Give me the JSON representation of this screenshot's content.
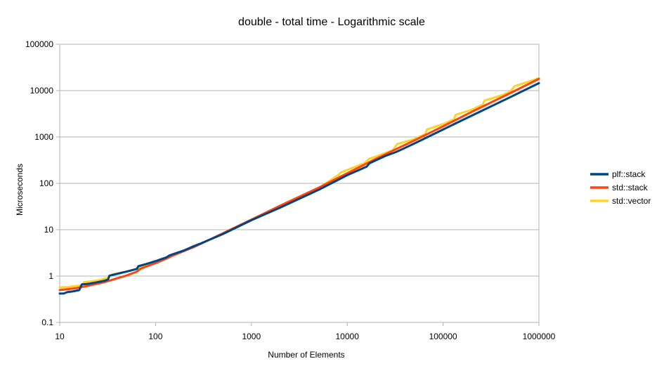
{
  "chart_data": {
    "type": "line",
    "title": "double - total time - Logarithmic scale",
    "xlabel": "Number of Elements",
    "ylabel": "Microseconds",
    "xscale": "log",
    "yscale": "log",
    "xlim": [
      10,
      1000000
    ],
    "ylim": [
      0.1,
      100000
    ],
    "x_ticks": [
      "10",
      "100",
      "1000",
      "10000",
      "100000",
      "1000000"
    ],
    "y_ticks": [
      "0.1",
      "1",
      "10",
      "100",
      "1000",
      "10000",
      "100000"
    ],
    "grid": "horizontal",
    "legend": "right",
    "series": [
      {
        "name": "plf::stack",
        "color": "#004586",
        "points": [
          [
            10,
            0.42
          ],
          [
            11,
            0.42
          ],
          [
            12,
            0.45
          ],
          [
            14,
            0.47
          ],
          [
            16,
            0.5
          ],
          [
            17,
            0.66
          ],
          [
            20,
            0.68
          ],
          [
            25,
            0.74
          ],
          [
            30,
            0.8
          ],
          [
            32,
            0.85
          ],
          [
            33,
            1.02
          ],
          [
            40,
            1.12
          ],
          [
            50,
            1.25
          ],
          [
            60,
            1.38
          ],
          [
            64,
            1.43
          ],
          [
            66,
            1.63
          ],
          [
            80,
            1.82
          ],
          [
            100,
            2.1
          ],
          [
            120,
            2.4
          ],
          [
            128,
            2.5
          ],
          [
            140,
            2.8
          ],
          [
            200,
            3.6
          ],
          [
            256,
            4.5
          ],
          [
            300,
            5.1
          ],
          [
            500,
            8
          ],
          [
            1000,
            16
          ],
          [
            2000,
            30
          ],
          [
            5000,
            72
          ],
          [
            10000,
            150
          ],
          [
            16000,
            230
          ],
          [
            17000,
            270
          ],
          [
            25000,
            390
          ],
          [
            32000,
            470
          ],
          [
            35000,
            510
          ],
          [
            50000,
            720
          ],
          [
            100000,
            1450
          ],
          [
            200000,
            2900
          ],
          [
            500000,
            7200
          ],
          [
            1000000,
            14500
          ]
        ]
      },
      {
        "name": "std::stack",
        "color": "#ff420e",
        "points": [
          [
            10,
            0.5
          ],
          [
            12,
            0.52
          ],
          [
            15,
            0.55
          ],
          [
            20,
            0.62
          ],
          [
            30,
            0.75
          ],
          [
            40,
            0.9
          ],
          [
            50,
            1.03
          ],
          [
            64,
            1.25
          ],
          [
            70,
            1.45
          ],
          [
            100,
            1.9
          ],
          [
            128,
            2.35
          ],
          [
            150,
            2.75
          ],
          [
            200,
            3.5
          ],
          [
            256,
            4.3
          ],
          [
            500,
            8.3
          ],
          [
            1000,
            16.5
          ],
          [
            2000,
            33
          ],
          [
            5000,
            80
          ],
          [
            10000,
            165
          ],
          [
            20000,
            340
          ],
          [
            50000,
            840
          ],
          [
            100000,
            1700
          ],
          [
            200000,
            3500
          ],
          [
            500000,
            8800
          ],
          [
            1000000,
            18000
          ]
        ]
      },
      {
        "name": "std::vector",
        "color": "#ffd320",
        "points": [
          [
            10,
            0.57
          ],
          [
            12,
            0.58
          ],
          [
            15,
            0.61
          ],
          [
            17,
            0.63
          ],
          [
            18,
            0.74
          ],
          [
            25,
            0.8
          ],
          [
            32,
            0.92
          ],
          [
            35,
            1.08
          ],
          [
            50,
            1.25
          ],
          [
            64,
            1.45
          ],
          [
            80,
            1.8
          ],
          [
            100,
            2.05
          ],
          [
            128,
            2.45
          ],
          [
            150,
            2.75
          ],
          [
            200,
            3.5
          ],
          [
            256,
            4.4
          ],
          [
            500,
            8
          ],
          [
            1000,
            16
          ],
          [
            2000,
            32
          ],
          [
            5000,
            78
          ],
          [
            8200,
            155
          ],
          [
            8500,
            170
          ],
          [
            10000,
            195
          ],
          [
            15000,
            270
          ],
          [
            17000,
            340
          ],
          [
            20000,
            380
          ],
          [
            30000,
            520
          ],
          [
            33000,
            700
          ],
          [
            50000,
            900
          ],
          [
            65000,
            1150
          ],
          [
            68000,
            1450
          ],
          [
            100000,
            1900
          ],
          [
            130000,
            2400
          ],
          [
            135000,
            3000
          ],
          [
            200000,
            3900
          ],
          [
            260000,
            5000
          ],
          [
            270000,
            6100
          ],
          [
            400000,
            7800
          ],
          [
            500000,
            9500
          ],
          [
            560000,
            12500
          ],
          [
            1000000,
            18500
          ]
        ]
      }
    ]
  }
}
